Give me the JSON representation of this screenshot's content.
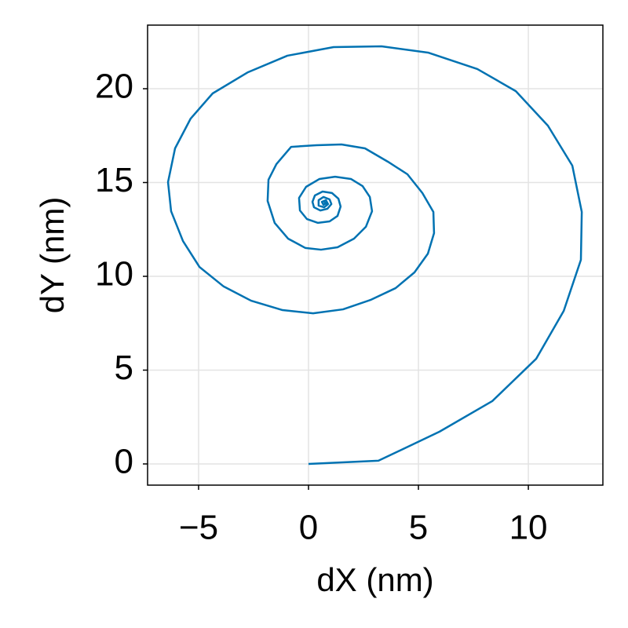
{
  "chart_data": {
    "type": "line",
    "x_label": "dX (nm)",
    "y_label": "dY (nm)",
    "xlim": [
      -7.32,
      13.39
    ],
    "ylim": [
      -1.13,
      23.39
    ],
    "xticks": [
      {
        "value": -5,
        "label": "−5"
      },
      0,
      5,
      10
    ],
    "yticks": [
      0,
      5,
      10,
      15,
      20
    ],
    "grid": true,
    "series": [
      {
        "color": "#0072b2",
        "x": [
          0,
          3.18,
          5.96,
          8.36,
          10.36,
          11.61,
          12.39,
          12.43,
          12.0,
          10.89,
          9.43,
          7.68,
          5.46,
          3.32,
          1.14,
          -0.96,
          -2.75,
          -4.36,
          -5.36,
          -6.07,
          -6.39,
          -6.25,
          -5.71,
          -4.96,
          -3.86,
          -2.61,
          -1.18,
          0.21,
          1.57,
          2.82,
          3.96,
          4.82,
          5.43,
          5.71,
          5.68,
          5.18,
          4.5,
          3.61,
          2.57,
          1.5,
          0.36,
          -0.79,
          -1.46,
          -1.82,
          -1.86,
          -1.54,
          -0.93,
          -0.14,
          0.57,
          1.32,
          2.07,
          2.61,
          2.89,
          2.79,
          2.46,
          1.93,
          1.21,
          0.5,
          -0.11,
          -0.43,
          -0.39,
          -0.07,
          0.43,
          0.96,
          1.32,
          1.46,
          1.36,
          1.07,
          0.64,
          0.29,
          0.18,
          0.25,
          0.54,
          0.86,
          1.04,
          0.96,
          0.68,
          0.46,
          0.46,
          0.71,
          0.89,
          0.79,
          0.61,
          0.68,
          0.79,
          0.71
        ],
        "values": [
          0,
          0.17,
          1.72,
          3.35,
          5.61,
          8.16,
          10.88,
          13.43,
          15.9,
          18.03,
          19.87,
          21.05,
          21.92,
          22.26,
          22.22,
          21.76,
          20.88,
          19.75,
          18.41,
          16.82,
          15.02,
          13.47,
          11.88,
          10.5,
          9.46,
          8.7,
          8.2,
          8.03,
          8.24,
          8.74,
          9.37,
          10.21,
          11.21,
          12.3,
          13.43,
          14.44,
          15.44,
          16.11,
          16.82,
          17.03,
          16.99,
          16.9,
          15.98,
          15.15,
          14.02,
          12.85,
          12.01,
          11.51,
          11.42,
          11.55,
          12.01,
          12.64,
          13.47,
          14.23,
          14.81,
          15.19,
          15.31,
          15.19,
          14.77,
          14.18,
          13.51,
          13.05,
          12.85,
          12.93,
          13.22,
          13.72,
          14.14,
          14.44,
          14.52,
          14.31,
          13.97,
          13.68,
          13.51,
          13.6,
          13.85,
          14.1,
          14.23,
          14.06,
          13.77,
          13.68,
          13.85,
          14.06,
          13.97,
          13.81,
          13.89,
          13.97
        ]
      }
    ]
  }
}
